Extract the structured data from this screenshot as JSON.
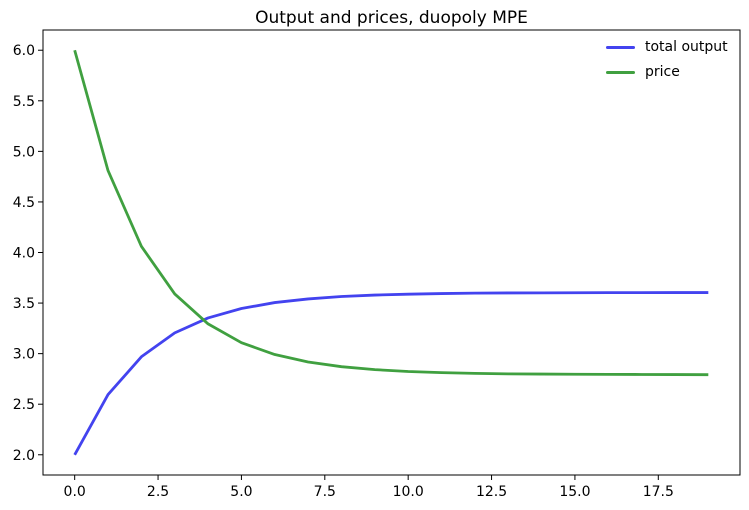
{
  "chart_data": {
    "type": "line",
    "title": "Output and prices, duopoly MPE",
    "xlabel": "",
    "ylabel": "",
    "grid": false,
    "xlim": [
      -0.95,
      19.95
    ],
    "ylim": [
      1.8,
      6.2
    ],
    "x": [
      0,
      1,
      2,
      3,
      4,
      5,
      6,
      7,
      8,
      9,
      10,
      11,
      12,
      13,
      14,
      15,
      16,
      17,
      18,
      19
    ],
    "series": [
      {
        "name": "total output",
        "color": "#4343ef",
        "values": [
          2.0,
          2.595,
          2.969,
          3.205,
          3.353,
          3.446,
          3.505,
          3.541,
          3.565,
          3.579,
          3.588,
          3.594,
          3.598,
          3.6,
          3.601,
          3.602,
          3.603,
          3.603,
          3.604,
          3.604
        ]
      },
      {
        "name": "price",
        "color": "#40a040",
        "values": [
          6.0,
          4.81,
          4.061,
          3.59,
          3.294,
          3.108,
          2.991,
          2.917,
          2.871,
          2.842,
          2.823,
          2.812,
          2.805,
          2.8,
          2.798,
          2.796,
          2.795,
          2.794,
          2.793,
          2.792
        ]
      }
    ],
    "xticks": [
      0.0,
      2.5,
      5.0,
      7.5,
      10.0,
      12.5,
      15.0,
      17.5
    ],
    "xtick_labels": [
      "0.0",
      "2.5",
      "5.0",
      "7.5",
      "10.0",
      "12.5",
      "15.0",
      "17.5"
    ],
    "yticks": [
      2.0,
      2.5,
      3.0,
      3.5,
      4.0,
      4.5,
      5.0,
      5.5,
      6.0
    ],
    "ytick_labels": [
      "2.0",
      "2.5",
      "3.0",
      "3.5",
      "4.0",
      "4.5",
      "5.0",
      "5.5",
      "6.0"
    ],
    "legend": {
      "position": "upper right",
      "frame": false,
      "entries": [
        "total output",
        "price"
      ]
    },
    "axis_color": "#000000",
    "background": "#ffffff"
  }
}
